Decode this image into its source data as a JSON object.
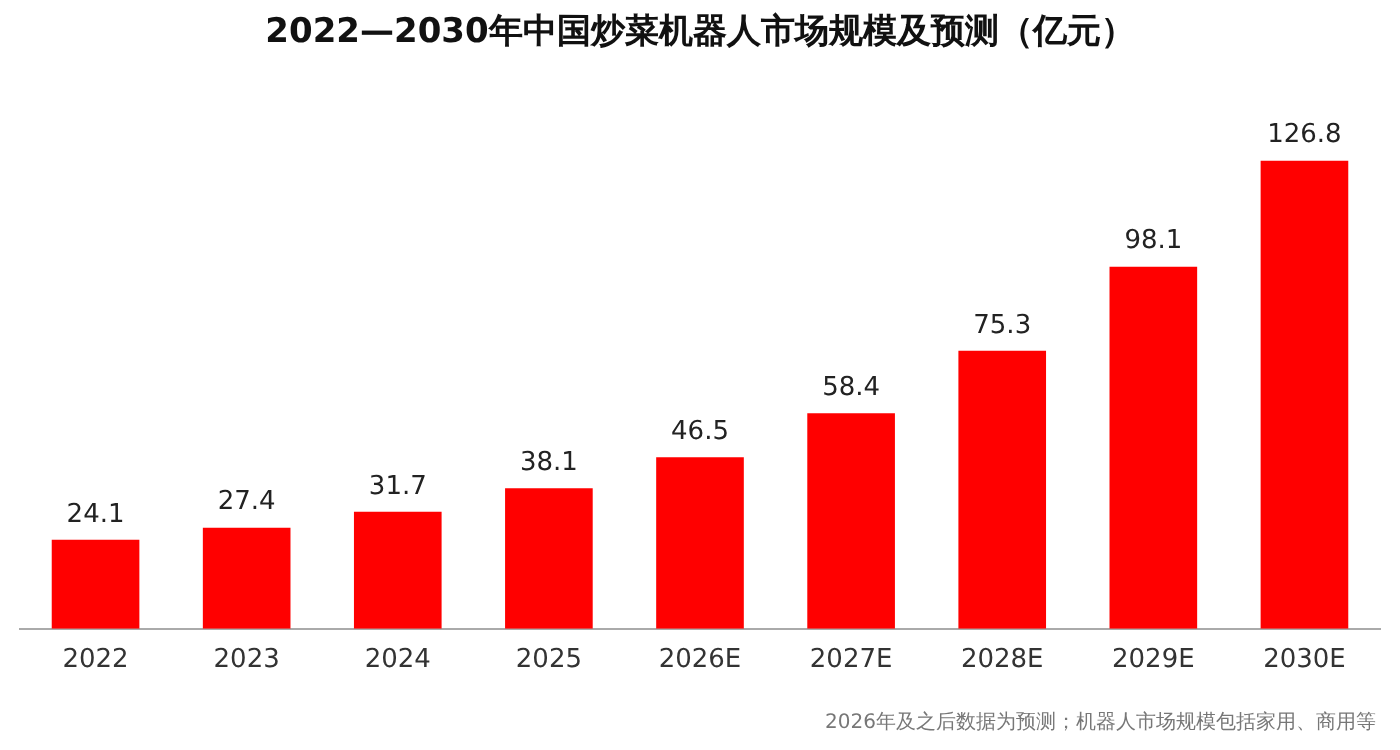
{
  "chart_data": {
    "type": "bar",
    "title": "2022—2030年中国炒菜机器人市场规模及预测（亿元）",
    "categories": [
      "2022",
      "2023",
      "2024",
      "2025",
      "2026E",
      "2027E",
      "2028E",
      "2029E",
      "2030E"
    ],
    "series": [
      {
        "color": "#ff0000",
        "values": [
          24.1,
          27.4,
          31.7,
          38.1,
          46.5,
          58.4,
          75.3,
          98.1,
          126.8
        ]
      }
    ],
    "data_labels": true,
    "grid": false,
    "legend": false,
    "tick_labels": "x",
    "annotations": [
      "2026年及之后数据为预测；机器人市场规模包括家用、商用等"
    ]
  }
}
